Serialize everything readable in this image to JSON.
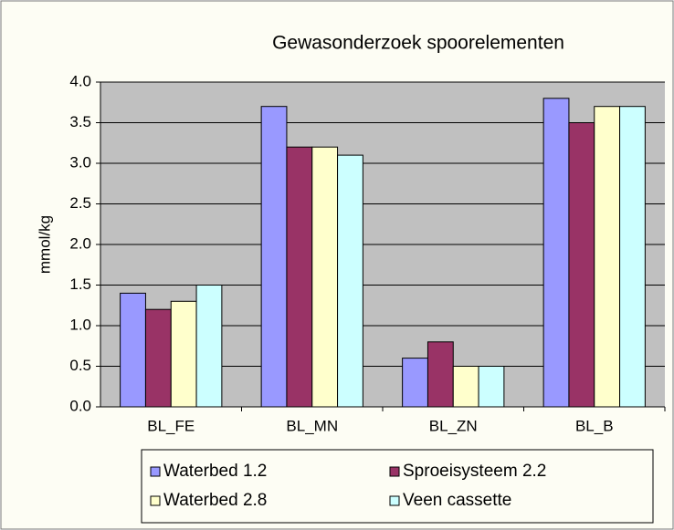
{
  "chart_data": {
    "type": "bar",
    "title": "Gewasonderzoek spoorelementen",
    "y_label": "mmol/kg",
    "categories": [
      "BL_FE",
      "BL_MN",
      "BL_ZN",
      "BL_B"
    ],
    "series": [
      {
        "name": "Waterbed 1.2",
        "color": "#9999ff",
        "values": [
          1.4,
          3.7,
          0.6,
          3.8
        ]
      },
      {
        "name": "Sproeisysteem 2.2",
        "color": "#993366",
        "values": [
          1.2,
          3.2,
          0.8,
          3.5
        ]
      },
      {
        "name": "Waterbed 2.8",
        "color": "#ffffcc",
        "values": [
          1.3,
          3.2,
          0.5,
          3.7
        ]
      },
      {
        "name": "Veen cassette",
        "color": "#ccffff",
        "values": [
          1.5,
          3.1,
          0.5,
          3.7
        ]
      }
    ],
    "ylim": [
      0,
      4
    ],
    "yticks": [
      {
        "value": 0,
        "label": "0.0"
      },
      0.5,
      {
        "value": 1,
        "label": "1.0"
      },
      1.5,
      {
        "value": 2,
        "label": "2.0"
      },
      2.5,
      {
        "value": 3,
        "label": "3.0"
      },
      3.5,
      {
        "value": 4,
        "label": "4.0"
      }
    ],
    "grid": true
  }
}
